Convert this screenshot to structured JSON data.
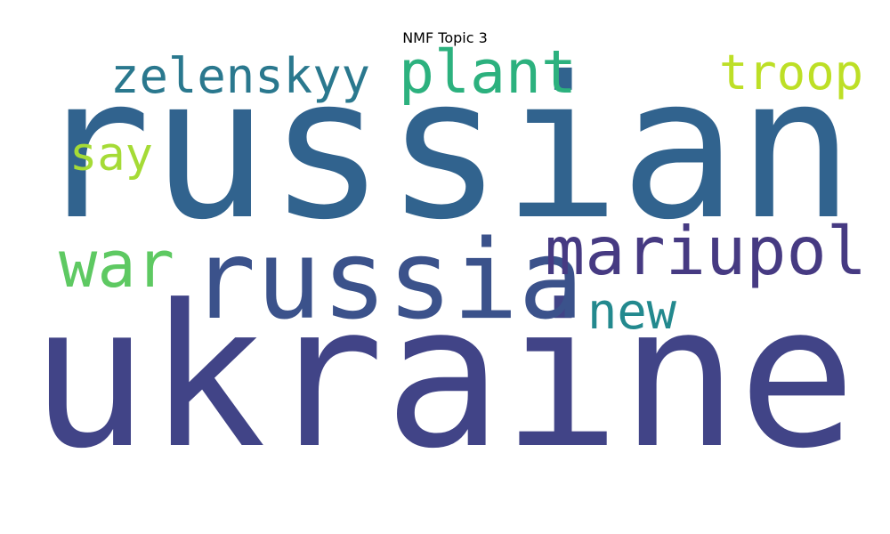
{
  "chart_data": {
    "type": "wordcloud",
    "title": "NMF Topic 3",
    "colormap": "viridis",
    "background": "#ffffff",
    "words": [
      {
        "text": "ukraine",
        "weight": 1.0,
        "color": "#414487"
      },
      {
        "text": "russian",
        "weight": 0.92,
        "color": "#31638e"
      },
      {
        "text": "russia",
        "weight": 0.57,
        "color": "#3b528b"
      },
      {
        "text": "mariupol",
        "weight": 0.42,
        "color": "#463a82"
      },
      {
        "text": "war",
        "weight": 0.38,
        "color": "#5ec962"
      },
      {
        "text": "zelenskyy",
        "weight": 0.32,
        "color": "#2a788e"
      },
      {
        "text": "plant",
        "weight": 0.32,
        "color": "#2cb17e"
      },
      {
        "text": "troop",
        "weight": 0.32,
        "color": "#bddf26"
      },
      {
        "text": "new",
        "weight": 0.28,
        "color": "#23898e"
      },
      {
        "text": "say",
        "weight": 0.28,
        "color": "#a5db36"
      }
    ]
  }
}
